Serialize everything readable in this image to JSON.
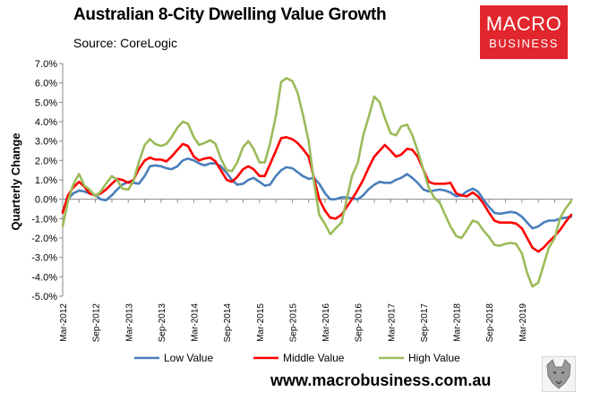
{
  "header": {
    "title": "Australian 8-City Dwelling Value Growth",
    "subtitle": "Source: CoreLogic"
  },
  "brand": {
    "logo_line1": "MACRO",
    "logo_line2": "BUSINESS",
    "logo_color": "#e1262d",
    "url": "www.macrobusiness.com.au"
  },
  "chart_data": {
    "type": "line",
    "ylabel": "Quarterly Change",
    "xlabel": "",
    "ylim": [
      -5.0,
      7.0
    ],
    "yticks": [
      "-5.0%",
      "-4.0%",
      "-3.0%",
      "-2.0%",
      "-1.0%",
      "0.0%",
      "1.0%",
      "2.0%",
      "3.0%",
      "4.0%",
      "5.0%",
      "6.0%",
      "7.0%"
    ],
    "ytick_values": [
      -5,
      -4,
      -3,
      -2,
      -1,
      0,
      1,
      2,
      3,
      4,
      5,
      6,
      7
    ],
    "xticks": [
      "Mar-2012",
      "Sep-2012",
      "Mar-2013",
      "Sep-2013",
      "Mar-2014",
      "Sep-2014",
      "Mar-2015",
      "Sep-2015",
      "Mar-2016",
      "Sep-2016",
      "Mar-2017",
      "Sep-2017",
      "Mar-2018",
      "Sep-2018",
      "Mar-2019"
    ],
    "xtick_values": [
      2012.17,
      2012.67,
      2013.17,
      2013.67,
      2014.17,
      2014.67,
      2015.17,
      2015.67,
      2016.17,
      2016.67,
      2017.17,
      2017.67,
      2018.17,
      2018.67,
      2019.17
    ],
    "xlim": [
      2012.17,
      2019.95
    ],
    "grid": false,
    "legend_position": "bottom",
    "x": [
      2012.17,
      2012.25,
      2012.33,
      2012.42,
      2012.5,
      2012.58,
      2012.67,
      2012.75,
      2012.83,
      2012.92,
      2013.0,
      2013.08,
      2013.17,
      2013.25,
      2013.33,
      2013.42,
      2013.5,
      2013.58,
      2013.67,
      2013.75,
      2013.83,
      2013.92,
      2014.0,
      2014.08,
      2014.17,
      2014.25,
      2014.33,
      2014.42,
      2014.5,
      2014.58,
      2014.67,
      2014.75,
      2014.83,
      2014.92,
      2015.0,
      2015.08,
      2015.17,
      2015.25,
      2015.33,
      2015.42,
      2015.5,
      2015.58,
      2015.67,
      2015.75,
      2015.83,
      2015.92,
      2016.0,
      2016.08,
      2016.17,
      2016.25,
      2016.33,
      2016.42,
      2016.5,
      2016.58,
      2016.67,
      2016.75,
      2016.83,
      2016.92,
      2017.0,
      2017.08,
      2017.17,
      2017.25,
      2017.33,
      2017.42,
      2017.5,
      2017.58,
      2017.67,
      2017.75,
      2017.83,
      2017.92,
      2018.0,
      2018.08,
      2018.17,
      2018.25,
      2018.33,
      2018.42,
      2018.5,
      2018.58,
      2018.67,
      2018.75,
      2018.83,
      2018.92,
      2019.0,
      2019.08,
      2019.17,
      2019.25,
      2019.33,
      2019.42,
      2019.5,
      2019.58,
      2019.67,
      2019.75,
      2019.83,
      2019.92
    ],
    "series": [
      {
        "name": "Low Value",
        "color": "#4a7ebb",
        "values": [
          -0.6,
          0.0,
          0.3,
          0.45,
          0.4,
          0.3,
          0.2,
          0.0,
          -0.05,
          0.2,
          0.5,
          0.75,
          0.9,
          0.85,
          0.8,
          1.2,
          1.7,
          1.75,
          1.7,
          1.6,
          1.55,
          1.7,
          2.0,
          2.1,
          2.0,
          1.85,
          1.75,
          1.85,
          1.85,
          1.7,
          1.35,
          1.0,
          0.75,
          0.8,
          1.0,
          1.1,
          0.9,
          0.7,
          0.75,
          1.2,
          1.5,
          1.65,
          1.6,
          1.4,
          1.2,
          1.05,
          1.1,
          0.8,
          0.3,
          0.0,
          0.0,
          0.1,
          0.1,
          0.05,
          0.0,
          0.2,
          0.5,
          0.75,
          0.9,
          0.85,
          0.85,
          1.0,
          1.1,
          1.3,
          1.1,
          0.85,
          0.5,
          0.4,
          0.45,
          0.5,
          0.45,
          0.35,
          0.15,
          0.2,
          0.4,
          0.55,
          0.4,
          0.0,
          -0.4,
          -0.7,
          -0.75,
          -0.7,
          -0.65,
          -0.7,
          -0.9,
          -1.2,
          -1.5,
          -1.4,
          -1.2,
          -1.1,
          -1.1,
          -1.0,
          -0.95,
          -0.9
        ]
      },
      {
        "name": "Middle Value",
        "color": "#ff0000",
        "values": [
          -0.7,
          0.2,
          0.6,
          0.9,
          0.65,
          0.3,
          0.2,
          0.3,
          0.5,
          0.8,
          1.05,
          1.0,
          0.85,
          1.0,
          1.55,
          2.0,
          2.15,
          2.05,
          2.05,
          1.95,
          2.2,
          2.55,
          2.85,
          2.75,
          2.2,
          2.0,
          2.1,
          2.15,
          1.95,
          1.5,
          1.0,
          0.9,
          1.15,
          1.55,
          1.7,
          1.55,
          1.2,
          1.2,
          1.8,
          2.5,
          3.15,
          3.2,
          3.1,
          2.9,
          2.6,
          2.2,
          1.1,
          0.0,
          -0.6,
          -0.95,
          -1.0,
          -0.8,
          -0.4,
          0.0,
          0.5,
          1.0,
          1.6,
          2.2,
          2.5,
          2.8,
          2.5,
          2.2,
          2.3,
          2.6,
          2.55,
          2.2,
          1.5,
          0.9,
          0.8,
          0.8,
          0.8,
          0.85,
          0.3,
          0.2,
          0.15,
          0.35,
          0.15,
          -0.2,
          -0.7,
          -1.1,
          -1.2,
          -1.2,
          -1.2,
          -1.25,
          -1.5,
          -2.0,
          -2.5,
          -2.7,
          -2.5,
          -2.2,
          -1.9,
          -1.6,
          -1.2,
          -0.8
        ]
      },
      {
        "name": "High Value",
        "color": "#9bbb59",
        "values": [
          -1.4,
          -0.1,
          0.75,
          1.3,
          0.7,
          0.5,
          0.15,
          0.4,
          0.8,
          1.2,
          1.0,
          0.55,
          0.5,
          0.95,
          1.9,
          2.8,
          3.1,
          2.85,
          2.75,
          2.85,
          3.2,
          3.7,
          4.0,
          3.9,
          3.2,
          2.8,
          2.9,
          3.05,
          2.85,
          2.1,
          1.5,
          1.45,
          1.9,
          2.7,
          3.0,
          2.6,
          1.9,
          1.9,
          2.85,
          4.3,
          6.05,
          6.25,
          6.1,
          5.5,
          4.4,
          3.0,
          0.9,
          -0.8,
          -1.3,
          -1.8,
          -1.5,
          -1.2,
          0.0,
          1.2,
          1.9,
          3.3,
          4.2,
          5.3,
          5.0,
          4.2,
          3.4,
          3.3,
          3.75,
          3.85,
          3.3,
          2.5,
          1.5,
          0.6,
          0.1,
          -0.2,
          -0.8,
          -1.4,
          -1.9,
          -2.0,
          -1.6,
          -1.1,
          -1.2,
          -1.6,
          -1.95,
          -2.35,
          -2.4,
          -2.3,
          -2.25,
          -2.3,
          -2.8,
          -3.8,
          -4.5,
          -4.3,
          -3.4,
          -2.5,
          -2.0,
          -1.0,
          -0.5,
          -0.1
        ]
      }
    ]
  }
}
